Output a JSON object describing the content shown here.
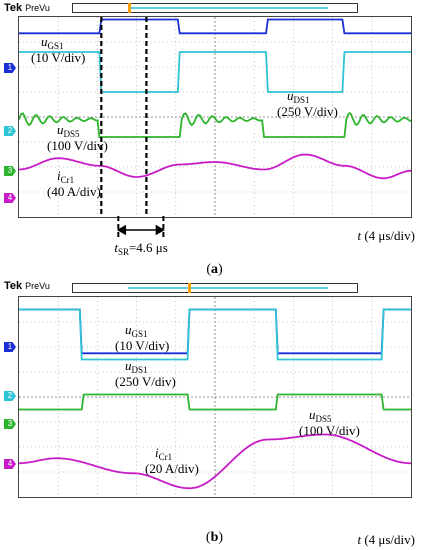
{
  "scope_header": {
    "brand": "Tek",
    "mode": "PreVu"
  },
  "panels": [
    {
      "caption_letter": "a",
      "channels": {
        "ugs1": {
          "symbol": "u",
          "sub": "GS1",
          "scale": "(10 V/div)"
        },
        "uds1": {
          "symbol": "u",
          "sub": "DS1",
          "scale": "(250 V/div)"
        },
        "uds5": {
          "symbol": "u",
          "sub": "DS5",
          "scale": "(100 V/div)"
        },
        "icr1": {
          "symbol": "i",
          "sub": "Cr1",
          "scale": "(40 A/div)"
        }
      },
      "timebase": {
        "symbol": "t",
        "scale": "(4 μs/div)"
      },
      "annotation": {
        "symbol": "t",
        "sub": "SR",
        "text": "=4.6 μs"
      },
      "marker_labels": [
        "1",
        "2",
        "3",
        "4"
      ]
    },
    {
      "caption_letter": "b",
      "channels": {
        "ugs1": {
          "symbol": "u",
          "sub": "GS1",
          "scale": "(10 V/div)"
        },
        "uds1": {
          "symbol": "u",
          "sub": "DS1",
          "scale": "(250 V/div)"
        },
        "uds5": {
          "symbol": "u",
          "sub": "DS5",
          "scale": "(100 V/div)"
        },
        "icr1": {
          "symbol": "i",
          "sub": "Cr1",
          "scale": "(20 A/div)"
        }
      },
      "timebase": {
        "symbol": "t",
        "scale": "(4 μs/div)"
      },
      "marker_labels": [
        "1",
        "2",
        "3",
        "4"
      ]
    }
  ],
  "chart_data": [
    {
      "type": "line",
      "title": "",
      "xlabel": "t (4 μs/div)",
      "xlim_div": [
        0,
        10
      ],
      "ylim_div": [
        0,
        8
      ],
      "grid": true,
      "series": [
        {
          "name": "uGS1 (10 V/div)",
          "color": "#1a2fd6",
          "x_div": [
            0,
            2.05,
            2.1,
            4.05,
            4.1,
            6.3,
            6.35,
            8.25,
            8.3,
            10
          ],
          "y_div": [
            7.35,
            7.35,
            7.9,
            7.9,
            7.35,
            7.35,
            7.9,
            7.9,
            7.35,
            7.35
          ]
        },
        {
          "name": "uDS1 (250 V/div)",
          "color": "#2ec4d6",
          "x_div": [
            0,
            2.05,
            2.1,
            4.05,
            4.1,
            6.3,
            6.35,
            8.25,
            8.3,
            10
          ],
          "y_div": [
            6.6,
            6.6,
            5.0,
            5.0,
            6.6,
            6.6,
            5.0,
            5.0,
            6.6,
            6.6
          ]
        },
        {
          "name": "uDS5 (100 V/div)",
          "color": "#2db52d",
          "x_div": [
            0,
            2.0,
            2.05,
            4.1,
            4.15,
            6.2,
            6.25,
            8.3,
            8.35,
            10
          ],
          "y_div": [
            3.9,
            3.9,
            3.2,
            3.2,
            3.9,
            3.9,
            3.2,
            3.2,
            3.9,
            3.9
          ],
          "note": "oscillation ≈ ±0.25 div after each edge"
        },
        {
          "name": "iCr1 (40 A/div)",
          "color": "#c81bc8",
          "x_div": [
            0,
            1,
            2.05,
            3,
            4.1,
            5,
            6.25,
            7.3,
            8.3,
            9.3,
            10
          ],
          "y_div": [
            1.9,
            2.35,
            2.05,
            1.6,
            2.1,
            2.2,
            1.9,
            2.5,
            2.05,
            1.55,
            1.85
          ]
        }
      ],
      "annotation": "tSR=4.6 μs"
    },
    {
      "type": "line",
      "title": "",
      "xlabel": "t (4 μs/div)",
      "xlim_div": [
        0,
        10
      ],
      "ylim_div": [
        0,
        8
      ],
      "grid": true,
      "series": [
        {
          "name": "uGS1 (10 V/div)",
          "color": "#1a2fd6",
          "x_div": [
            0,
            1.55,
            1.6,
            4.3,
            4.35,
            6.55,
            6.6,
            9.25,
            9.3,
            10
          ],
          "y_div": [
            7.5,
            7.5,
            5.75,
            5.75,
            7.5,
            7.5,
            5.75,
            5.75,
            7.5,
            7.5
          ]
        },
        {
          "name": "uDS1 (250 V/div)",
          "color": "#2ec4d6",
          "x_div": [
            0,
            1.55,
            1.6,
            4.3,
            4.35,
            6.55,
            6.6,
            9.25,
            9.3,
            10
          ],
          "y_div": [
            7.5,
            7.5,
            5.5,
            5.5,
            7.5,
            7.5,
            5.5,
            5.5,
            7.5,
            7.5
          ]
        },
        {
          "name": "uDS5 (100 V/div)",
          "color": "#2db52d",
          "x_div": [
            0,
            1.6,
            1.65,
            4.3,
            4.35,
            6.55,
            6.6,
            9.25,
            9.3,
            10
          ],
          "y_div": [
            3.5,
            3.5,
            4.1,
            4.1,
            3.5,
            3.5,
            4.1,
            4.1,
            3.5,
            3.5
          ]
        },
        {
          "name": "iCr1 (20 A/div)",
          "color": "#c81bc8",
          "x_div": [
            0,
            0.95,
            2.9,
            4.35,
            6.35,
            7.8,
            10
          ],
          "y_div": [
            1.35,
            1.55,
            0.95,
            0.35,
            2.3,
            2.5,
            1.35
          ]
        }
      ]
    }
  ]
}
